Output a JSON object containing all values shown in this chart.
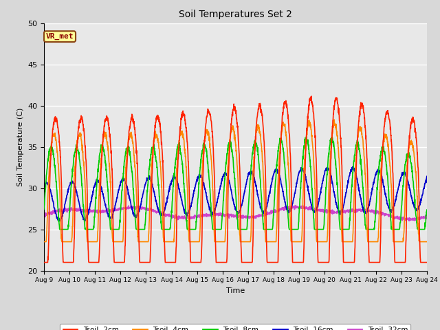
{
  "title": "Soil Temperatures Set 2",
  "xlabel": "Time",
  "ylabel": "Soil Temperature (C)",
  "ylim": [
    20,
    50
  ],
  "background_color": "#e8e8e8",
  "grid_color": "white",
  "annotation_text": "VR_met",
  "annotation_color": "#8B0000",
  "annotation_bg": "#ffff99",
  "annotation_border": "#8B4513",
  "x_tick_labels": [
    "Aug 9",
    "Aug 10",
    "Aug 11",
    "Aug 12",
    "Aug 13",
    "Aug 14",
    "Aug 15",
    "Aug 16",
    "Aug 17",
    "Aug 18",
    "Aug 19",
    "Aug 20",
    "Aug 21",
    "Aug 22",
    "Aug 23",
    "Aug 24"
  ],
  "series": {
    "Tsoil -2cm": {
      "color": "#ff2200"
    },
    "Tsoil -4cm": {
      "color": "#ff8800"
    },
    "Tsoil -8cm": {
      "color": "#00cc00"
    },
    "Tsoil -16cm": {
      "color": "#0000cc"
    },
    "Tsoil -32cm": {
      "color": "#cc44cc"
    }
  }
}
